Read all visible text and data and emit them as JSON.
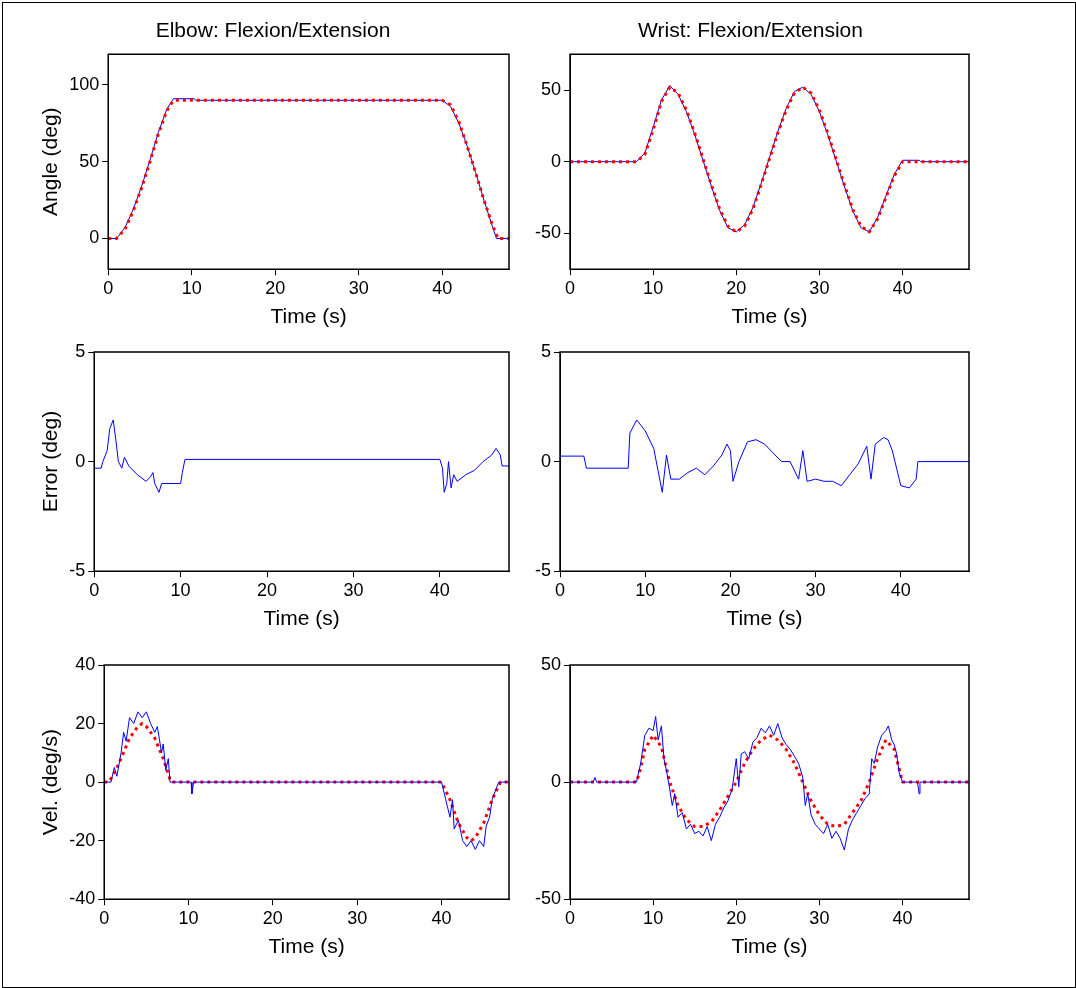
{
  "chart_data": [
    {
      "type": "line",
      "title": "Elbow: Flexion/Extension",
      "xlabel": "Time (s)",
      "ylabel": "Angle (deg)",
      "xlim": [
        0,
        48
      ],
      "xticks": [
        0,
        10,
        20,
        30,
        40
      ],
      "ylim": [
        -20,
        120
      ],
      "yticks": [
        0,
        50,
        100
      ],
      "grid": false,
      "series": [
        {
          "color": "#ff0000",
          "line_style": "dotted",
          "x": [
            0,
            1,
            2,
            3,
            4,
            5,
            6,
            7,
            7.7,
            8,
            20,
            30,
            40,
            41,
            42,
            43,
            44,
            45,
            46,
            46.7,
            48
          ],
          "values": [
            0,
            0,
            6,
            18,
            33,
            50,
            68,
            83,
            89,
            90,
            90,
            90,
            90,
            87,
            76,
            60,
            43,
            25,
            9,
            0,
            0
          ]
        },
        {
          "color": "#0000ff",
          "line_style": "solid",
          "x": [
            0,
            1,
            2,
            3,
            4,
            5,
            6,
            7,
            7.8,
            10.3,
            10.5,
            20,
            30,
            40,
            41,
            42,
            43,
            44,
            45,
            46,
            46.5,
            48
          ],
          "values": [
            0,
            0,
            7,
            19,
            34,
            51,
            69,
            84,
            91,
            91,
            90,
            90,
            90,
            90,
            86,
            75,
            60,
            43,
            25,
            8,
            0,
            0
          ]
        }
      ]
    },
    {
      "type": "line",
      "title": "Wrist: Flexion/Extension",
      "xlabel": "Time (s)",
      "xlim": [
        0,
        48
      ],
      "xticks": [
        0,
        10,
        20,
        30,
        40
      ],
      "ylim": [
        -75,
        75
      ],
      "yticks": [
        -50,
        0,
        50
      ],
      "grid": false,
      "series": [
        {
          "color": "#ff0000",
          "line_style": "dotted",
          "x": [
            0,
            8,
            9,
            10,
            11,
            12,
            13,
            14,
            15,
            16,
            17,
            18,
            19,
            20,
            21,
            22,
            23,
            24,
            25,
            26,
            27,
            28,
            29,
            30,
            31,
            32,
            33,
            34,
            35,
            36,
            37,
            38,
            39,
            40,
            48
          ],
          "values": [
            0,
            0,
            5,
            22,
            42,
            52,
            48,
            36,
            20,
            2,
            -16,
            -33,
            -45,
            -49,
            -45,
            -33,
            -16,
            2,
            20,
            36,
            48,
            52,
            48,
            36,
            20,
            2,
            -16,
            -33,
            -45,
            -49,
            -40,
            -25,
            -10,
            0,
            0
          ]
        },
        {
          "color": "#0000ff",
          "line_style": "solid",
          "x": [
            0,
            8,
            9,
            10,
            11,
            12,
            13,
            14,
            15,
            16,
            17,
            18,
            19,
            20,
            21,
            22,
            23,
            24,
            25,
            26,
            27,
            28,
            29,
            30,
            31,
            32,
            33,
            34,
            35,
            36,
            37,
            38,
            39,
            40,
            42,
            42.2,
            48
          ],
          "values": [
            0,
            0,
            6,
            24,
            43,
            53,
            47,
            35,
            19,
            1,
            -17,
            -34,
            -46,
            -49,
            -44,
            -32,
            -15,
            3,
            21,
            37,
            49,
            52,
            47,
            35,
            19,
            1,
            -17,
            -34,
            -46,
            -49,
            -39,
            -24,
            -9,
            1,
            1,
            0,
            0
          ]
        }
      ]
    },
    {
      "type": "line",
      "xlabel": "Time (s)",
      "ylabel": "Error (deg)",
      "xlim": [
        0,
        48
      ],
      "xticks": [
        0,
        10,
        20,
        30,
        40
      ],
      "ylim": [
        -5,
        5
      ],
      "yticks": [
        -5,
        0,
        5
      ],
      "grid": false,
      "series": [
        {
          "color": "#0000ff",
          "line_style": "solid",
          "x": [
            0,
            0.8,
            1,
            1.5,
            1.8,
            2.2,
            2.5,
            2.8,
            3.2,
            3.5,
            4,
            5,
            6,
            6.5,
            6.8,
            7,
            7.5,
            7.8,
            10,
            10.2,
            10.5,
            40,
            40.3,
            40.5,
            40.8,
            41,
            41.3,
            41.6,
            42,
            43,
            44,
            45,
            46,
            46.5,
            47,
            47.2,
            48
          ],
          "values": [
            -0.3,
            -0.3,
            0,
            0.5,
            1.5,
            1.9,
            1,
            0,
            -0.3,
            0.2,
            -0.2,
            -0.6,
            -0.9,
            -0.7,
            -0.5,
            -1,
            -1.4,
            -1,
            -1,
            -0.5,
            0.1,
            0.1,
            -0.3,
            -1.4,
            -1,
            0,
            -1.2,
            -0.6,
            -0.9,
            -0.6,
            -0.4,
            0,
            0.3,
            0.6,
            0.3,
            -0.2,
            -0.2
          ]
        }
      ]
    },
    {
      "type": "line",
      "xlabel": "Time (s)",
      "xlim": [
        0,
        48
      ],
      "xticks": [
        0,
        10,
        20,
        30,
        40
      ],
      "ylim": [
        -5,
        5
      ],
      "yticks": [
        -5,
        0,
        5
      ],
      "grid": false,
      "series": [
        {
          "color": "#0000ff",
          "line_style": "solid",
          "x": [
            0,
            2.8,
            3.1,
            8,
            8.2,
            9,
            10,
            11,
            11.5,
            12,
            12.5,
            13,
            14,
            15,
            16,
            17,
            18,
            19,
            19.6,
            20,
            20.3,
            21,
            22,
            23,
            24,
            25,
            26,
            27,
            28,
            28.5,
            29,
            30,
            31,
            32,
            33,
            34,
            35,
            36,
            36.5,
            37,
            38,
            38.5,
            39,
            39.5,
            40,
            41,
            41.8,
            42,
            48
          ],
          "values": [
            0.25,
            0.25,
            -0.3,
            -0.3,
            1.3,
            1.9,
            1.4,
            0.6,
            -0.4,
            -1.4,
            0.3,
            -0.8,
            -0.8,
            -0.5,
            -0.3,
            -0.6,
            -0.2,
            0.3,
            0.8,
            0.5,
            -0.9,
            0,
            0.9,
            1,
            0.8,
            0.4,
            0,
            0,
            -0.8,
            0.5,
            -0.9,
            -0.8,
            -0.9,
            -0.9,
            -1.1,
            -0.6,
            -0.1,
            0.7,
            -0.8,
            0.8,
            1.1,
            1,
            0.5,
            -0.3,
            -1.1,
            -1.2,
            -0.8,
            0,
            0
          ]
        }
      ]
    },
    {
      "type": "line",
      "xlabel": "Time (s)",
      "ylabel": "Vel. (deg/s)",
      "xlim": [
        0,
        48
      ],
      "xticks": [
        0,
        10,
        20,
        30,
        40
      ],
      "ylim": [
        -40,
        40
      ],
      "yticks": [
        -40,
        -20,
        0,
        20,
        40
      ],
      "grid": false,
      "series": [
        {
          "color": "#0000ff",
          "line_style": "solid",
          "x": [
            0,
            0.8,
            1.2,
            1.5,
            2,
            2.3,
            2.6,
            3,
            3.5,
            4,
            4.5,
            5,
            5.5,
            6,
            6.3,
            6.8,
            7,
            7.3,
            7.6,
            7.8,
            8,
            10.3,
            10.4,
            10.6,
            40,
            40.5,
            41,
            41.3,
            41.5,
            42,
            42.5,
            43,
            43.5,
            44,
            44.5,
            45,
            45.3,
            45.7,
            46,
            46.5,
            46.8,
            48
          ],
          "values": [
            0,
            0,
            5,
            2,
            10,
            17,
            14,
            22,
            20,
            24,
            22,
            24,
            20,
            17,
            19,
            10,
            13,
            4,
            8,
            0,
            0,
            0,
            -4,
            0,
            0,
            -6,
            -12,
            -6,
            -16,
            -13,
            -20,
            -22,
            -20,
            -23,
            -20,
            -22,
            -15,
            -12,
            -6,
            -2,
            0,
            0
          ]
        },
        {
          "color": "#ff0000",
          "line_style": "dotted",
          "x": [
            0,
            0.5,
            1,
            2,
            3,
            4,
            4.5,
            5,
            6,
            7,
            7.8,
            8,
            40,
            41,
            42,
            43,
            43.5,
            44,
            45,
            46,
            47,
            48
          ],
          "values": [
            0,
            0,
            2,
            8,
            15,
            19,
            20,
            19,
            15,
            8,
            1,
            0,
            0,
            -6,
            -14,
            -19,
            -20,
            -19,
            -14,
            -6,
            0,
            0
          ]
        }
      ]
    },
    {
      "type": "line",
      "xlabel": "Time (s)",
      "xlim": [
        0,
        48
      ],
      "xticks": [
        0,
        10,
        20,
        30,
        40
      ],
      "ylim": [
        -50,
        50
      ],
      "yticks": [
        -50,
        0,
        50
      ],
      "grid": false,
      "series": [
        {
          "color": "#0000ff",
          "line_style": "solid",
          "x": [
            0,
            2.8,
            3,
            3.2,
            8,
            8.5,
            9,
            9.5,
            10,
            10.3,
            10.6,
            11,
            11.3,
            11.6,
            12,
            12.3,
            12.6,
            13,
            13.5,
            14,
            14.5,
            15,
            15.5,
            16,
            16.5,
            17,
            17.5,
            18,
            18.5,
            19,
            19.5,
            20,
            20.3,
            20.6,
            21,
            21.5,
            22,
            22.5,
            23,
            23.5,
            24,
            24.5,
            25,
            25.5,
            26,
            26.5,
            27,
            27.5,
            28,
            28.3,
            28.6,
            29,
            29.5,
            30,
            30.5,
            31,
            31.5,
            32,
            32.5,
            33,
            33.5,
            34,
            34.5,
            35,
            35.5,
            36,
            36.3,
            36.6,
            37,
            37.5,
            38,
            38.3,
            38.7,
            39,
            39.3,
            39.6,
            40,
            41.8,
            42,
            42.1,
            48
          ],
          "values": [
            0,
            0,
            2,
            0,
            0,
            8,
            20,
            23,
            22,
            28,
            18,
            24,
            10,
            5,
            -3,
            -10,
            -5,
            -15,
            -13,
            -20,
            -18,
            -22,
            -21,
            -23,
            -19,
            -25,
            -18,
            -15,
            -11,
            -8,
            -3,
            10,
            -2,
            12,
            13,
            10,
            17,
            19,
            23,
            21,
            24,
            20,
            25,
            19,
            16,
            14,
            11,
            8,
            2,
            -10,
            -5,
            -14,
            -18,
            -20,
            -22,
            -18,
            -24,
            -21,
            -24,
            -29,
            -20,
            -16,
            -13,
            -10,
            -7,
            -5,
            10,
            8,
            15,
            20,
            22,
            24,
            18,
            16,
            12,
            4,
            0,
            0,
            -5,
            0,
            0
          ]
        },
        {
          "color": "#ff0000",
          "line_style": "dotted",
          "x": [
            0,
            8,
            8.5,
            9,
            10,
            11,
            12,
            13,
            14,
            15,
            16,
            17,
            18,
            19,
            20,
            21,
            22,
            23,
            24,
            25,
            26,
            27,
            28,
            29,
            30,
            31,
            32,
            33,
            34,
            35,
            36,
            37,
            38,
            39,
            40,
            48
          ],
          "values": [
            0,
            0,
            6,
            14,
            20,
            15,
            0,
            -10,
            -16,
            -19,
            -19,
            -17,
            -12,
            -6,
            0,
            8,
            14,
            18,
            20,
            18,
            14,
            8,
            0,
            -8,
            -14,
            -18,
            -19,
            -18,
            -13,
            -8,
            0,
            10,
            18,
            14,
            0,
            0
          ]
        }
      ]
    }
  ]
}
